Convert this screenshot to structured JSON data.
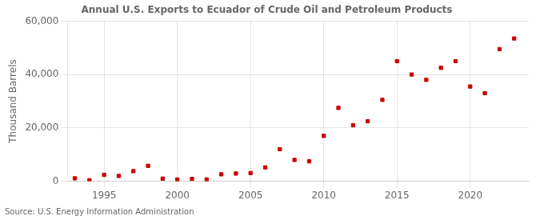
{
  "chart_data": {
    "type": "scatter",
    "title": "Annual U.S. Exports to Ecuador of Crude Oil and Petroleum Products",
    "y_label": "Thousand Barrels",
    "annotation": "Source: U.S. Energy Information Administration",
    "x": [
      1993,
      1994,
      1995,
      1996,
      1997,
      1998,
      1999,
      2000,
      2001,
      2002,
      2003,
      2004,
      2005,
      2006,
      2007,
      2008,
      2009,
      2010,
      2011,
      2012,
      2013,
      2014,
      2015,
      2016,
      2017,
      2018,
      2019,
      2020,
      2021,
      2022,
      2023
    ],
    "values": [
      1100,
      400,
      2400,
      2000,
      3800,
      5800,
      1000,
      700,
      900,
      700,
      2600,
      2900,
      3100,
      5200,
      12000,
      8000,
      7500,
      17000,
      27500,
      21000,
      22500,
      30500,
      45000,
      40000,
      38000,
      42500,
      45000,
      35500,
      33000,
      49500,
      53500
    ],
    "color": "#cc0000",
    "marker": "square",
    "xlim": [
      1992.5,
      2024
    ],
    "xticks": [
      1995,
      2000,
      2005,
      2010,
      2015,
      2020
    ],
    "ylim": [
      0,
      60000
    ],
    "yticks": [
      0,
      {
        "value": 20000,
        "label": "20,000"
      },
      {
        "value": 40000,
        "label": "40,000"
      },
      {
        "value": 60000,
        "label": "60,000"
      }
    ],
    "grid": true
  }
}
